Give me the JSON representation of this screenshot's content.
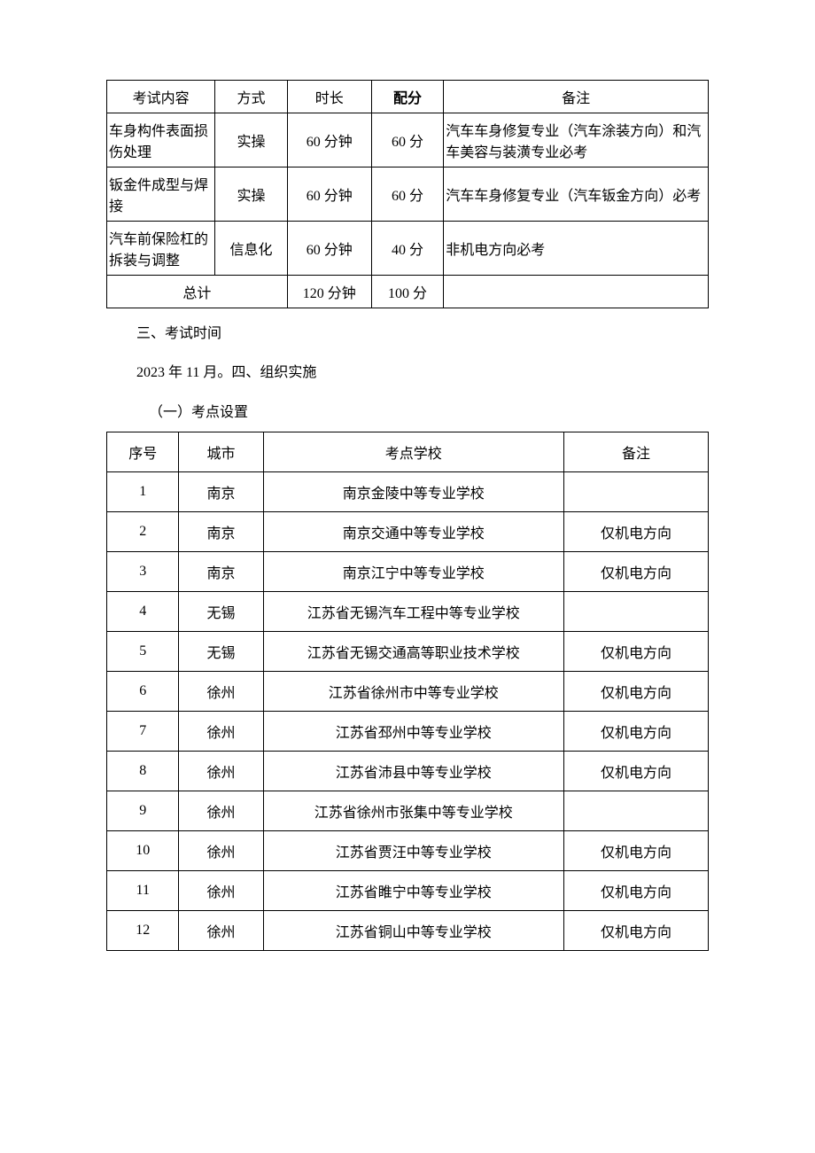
{
  "table1": {
    "headers": {
      "content": "考试内容",
      "method": "方式",
      "duration": "时长",
      "score": "配分",
      "remark": "备注"
    },
    "rows": [
      {
        "content": "车身构件表面损伤处理",
        "method": "实操",
        "duration": "60 分钟",
        "score": "60 分",
        "remark": "汽车车身修复专业（汽车涂装方向）和汽车美容与装潢专业必考"
      },
      {
        "content": "钣金件成型与焊接",
        "method": "实操",
        "duration": "60 分钟",
        "score": "60 分",
        "remark": "汽车车身修复专业（汽车钣金方向）必考"
      },
      {
        "content": "汽车前保险杠的拆装与调整",
        "method": "信息化",
        "duration": "60 分钟",
        "score": "40 分",
        "remark": "非机电方向必考"
      }
    ],
    "total": {
      "label": "总计",
      "duration": "120 分钟",
      "score": "100 分",
      "remark": ""
    }
  },
  "text": {
    "section3": "三、考试时间",
    "date_line": "2023 年 11 月。四、组织实施",
    "subsection": "（一）考点设置"
  },
  "table2": {
    "headers": {
      "num": "序号",
      "city": "城市",
      "school": "考点学校",
      "remark": "备注"
    },
    "rows": [
      {
        "num": "1",
        "city": "南京",
        "school": "南京金陵中等专业学校",
        "remark": ""
      },
      {
        "num": "2",
        "city": "南京",
        "school": "南京交通中等专业学校",
        "remark": "仅机电方向"
      },
      {
        "num": "3",
        "city": "南京",
        "school": "南京江宁中等专业学校",
        "remark": "仅机电方向"
      },
      {
        "num": "4",
        "city": "无锡",
        "school": "江苏省无锡汽车工程中等专业学校",
        "remark": ""
      },
      {
        "num": "5",
        "city": "无锡",
        "school": "江苏省无锡交通高等职业技术学校",
        "remark": "仅机电方向"
      },
      {
        "num": "6",
        "city": "徐州",
        "school": "江苏省徐州市中等专业学校",
        "remark": "仅机电方向"
      },
      {
        "num": "7",
        "city": "徐州",
        "school": "江苏省邳州中等专业学校",
        "remark": "仅机电方向"
      },
      {
        "num": "8",
        "city": "徐州",
        "school": "江苏省沛县中等专业学校",
        "remark": "仅机电方向"
      },
      {
        "num": "9",
        "city": "徐州",
        "school": "江苏省徐州市张集中等专业学校",
        "remark": ""
      },
      {
        "num": "10",
        "city": "徐州",
        "school": "江苏省贾汪中等专业学校",
        "remark": "仅机电方向"
      },
      {
        "num": "11",
        "city": "徐州",
        "school": "江苏省睢宁中等专业学校",
        "remark": "仅机电方向"
      },
      {
        "num": "12",
        "city": "徐州",
        "school": "江苏省铜山中等专业学校",
        "remark": "仅机电方向"
      }
    ]
  }
}
